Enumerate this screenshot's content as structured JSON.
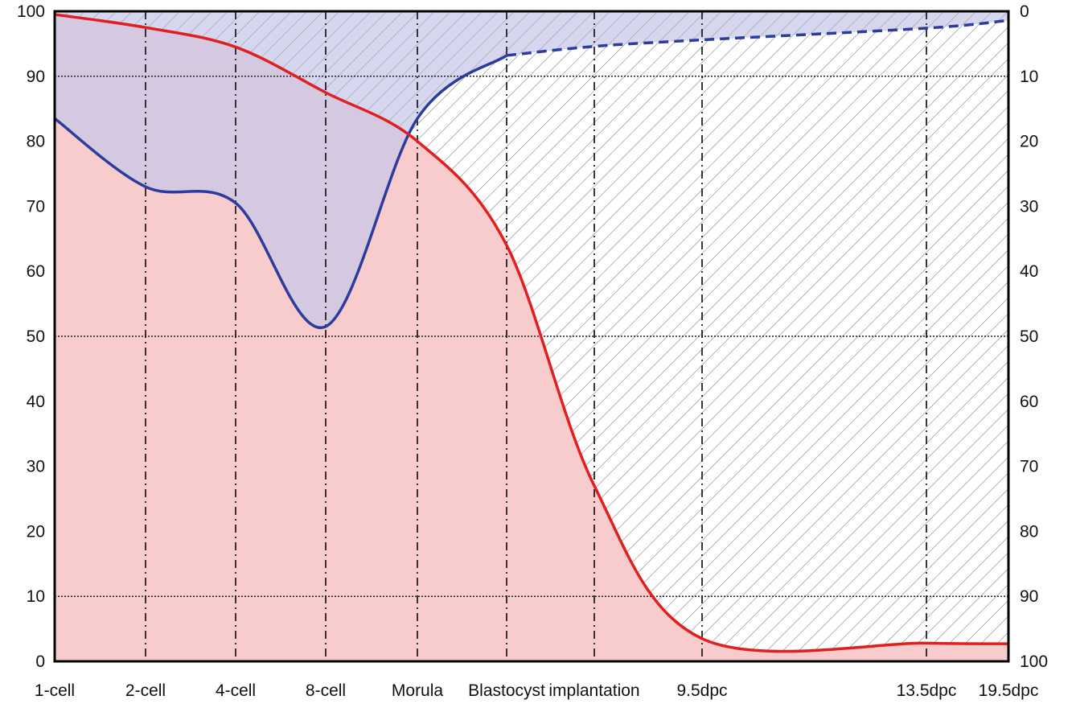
{
  "chart_data": {
    "type": "area",
    "title": "",
    "xlabel": "",
    "ylabel": "",
    "y2label": "",
    "categories": [
      "1-cell",
      "2-cell",
      "4-cell",
      "8-cell",
      "Morula",
      "Blastocyst",
      "implantation",
      "9.5dpc",
      "13.5dpc",
      "19.5dpc"
    ],
    "ylim": [
      0,
      100
    ],
    "y_ticks": [
      0,
      10,
      20,
      30,
      40,
      50,
      60,
      70,
      80,
      90,
      100
    ],
    "y2lim": [
      100,
      0
    ],
    "y2_ticks": [
      0,
      10,
      20,
      30,
      40,
      50,
      60,
      70,
      80,
      90,
      100
    ],
    "grid": {
      "horizontal": [
        10,
        50,
        90
      ],
      "vertical": "dashed at each category"
    },
    "series": [
      {
        "color": "#e02020",
        "fill": "#f8c9c9",
        "axis": "left",
        "points": [
          [
            0,
            99.5
          ],
          [
            1,
            97.5
          ],
          [
            2,
            94.5
          ],
          [
            3,
            87.5
          ],
          [
            4,
            80
          ],
          [
            5,
            64
          ],
          [
            6,
            27
          ],
          [
            7,
            3.5
          ],
          [
            8,
            2.8
          ],
          [
            9,
            2.7
          ]
        ]
      },
      {
        "color": "#2c3c9c",
        "fill": "#c8c8e8",
        "axis": "left",
        "points": [
          [
            0,
            83.5
          ],
          [
            1,
            73
          ],
          [
            2,
            70.5
          ],
          [
            3,
            51.5
          ],
          [
            4,
            83.5
          ],
          [
            5,
            93.2
          ]
        ]
      },
      {
        "color": "#2c3c9c",
        "style": "dashed",
        "axis": "left",
        "points": [
          [
            5,
            93.2
          ],
          [
            6,
            94.6
          ],
          [
            7,
            95.6
          ],
          [
            8,
            97.4
          ],
          [
            9,
            98.6
          ]
        ]
      }
    ],
    "hatch": "above red curve"
  }
}
